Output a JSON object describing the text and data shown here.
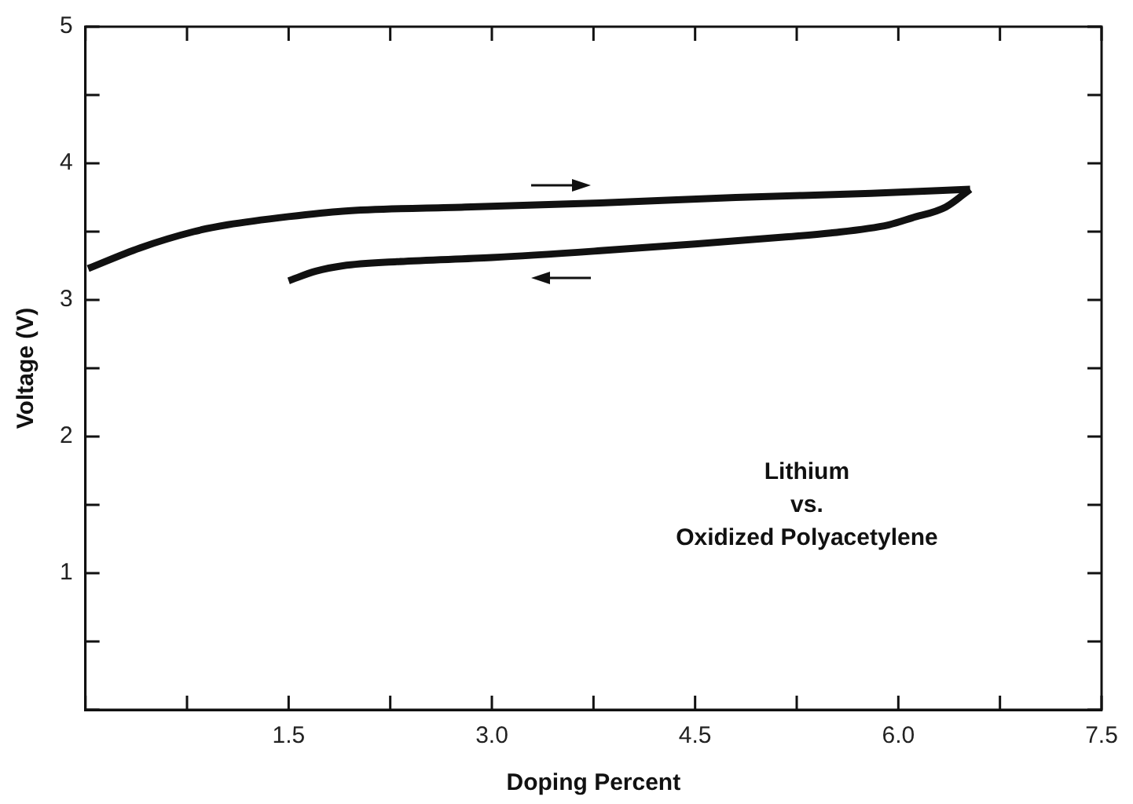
{
  "chart_data": {
    "type": "line",
    "xlabel": "Doping Percent",
    "ylabel": "Voltage (V)",
    "annotations": [
      "Lithium",
      "vs.",
      "Oxidized Polyacetylene"
    ],
    "series": [
      {
        "color": "#111111",
        "x": [
          0.02,
          0.4,
          0.8,
          1.05,
          1.5,
          1.9,
          2.8,
          3.8,
          4.8,
          5.8,
          6.53
        ],
        "values": [
          3.23,
          3.38,
          3.5,
          3.55,
          3.61,
          3.65,
          3.68,
          3.71,
          3.75,
          3.78,
          3.81
        ]
      },
      {
        "color": "#111111",
        "x": [
          6.53,
          6.35,
          6.1,
          5.93,
          5.5,
          5.15,
          4.5,
          3.8,
          3.0,
          2.3,
          1.9,
          1.7,
          1.5
        ],
        "values": [
          3.81,
          3.68,
          3.6,
          3.55,
          3.49,
          3.46,
          3.41,
          3.36,
          3.31,
          3.28,
          3.25,
          3.21,
          3.14
        ]
      }
    ],
    "xlim": [
      0,
      7.5
    ],
    "ylim": [
      0,
      5
    ],
    "xticks": [
      {
        "value": 0,
        "label": null
      },
      {
        "value": 0.75,
        "label": null
      },
      {
        "value": 1.5,
        "label": "1.5"
      },
      {
        "value": 2.25,
        "label": null
      },
      {
        "value": 3,
        "label": "3.0"
      },
      {
        "value": 3.75,
        "label": null
      },
      {
        "value": 4.5,
        "label": "4.5"
      },
      {
        "value": 5.25,
        "label": null
      },
      {
        "value": 6,
        "label": "6.0"
      },
      {
        "value": 6.75,
        "label": null
      },
      {
        "value": 7.5,
        "label": "7.5"
      }
    ],
    "yticks": [
      {
        "value": 0,
        "label": null
      },
      {
        "value": 0.5,
        "label": null
      },
      1,
      {
        "value": 1.5,
        "label": null
      },
      2,
      {
        "value": 2.5,
        "label": null
      },
      3,
      {
        "value": 3.5,
        "label": null
      },
      4,
      {
        "value": 4.5,
        "label": null
      },
      5
    ],
    "grid": false,
    "legend": false,
    "marker": "none",
    "line_style": "solid"
  }
}
